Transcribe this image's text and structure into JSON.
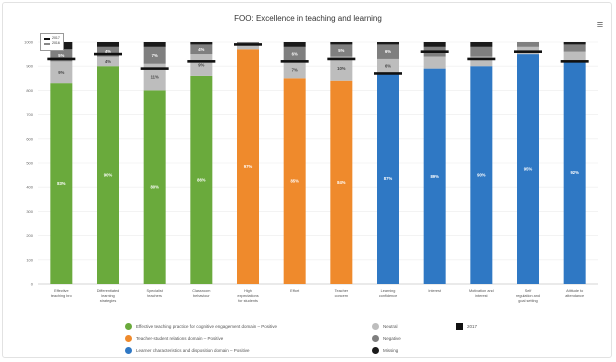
{
  "chart_data": {
    "type": "bar",
    "stacked": true,
    "title": "FOO: Excellence in teaching and learning",
    "ylim": [
      0,
      1000
    ],
    "yticks": [
      "0",
      "100",
      "200",
      "300",
      "400",
      "500",
      "600",
      "700",
      "800",
      "900",
      "1000"
    ],
    "categories": [
      "Effective teaching bro",
      "Differentiated learning strategies",
      "Specialist teachers",
      "Classroom behaviour",
      "High expectations for students",
      "Effort",
      "Teacher concern",
      "Learning confidence",
      "Interest",
      "Motivation and interest",
      "Self regulation and goal setting",
      "Attitude to attendance"
    ],
    "series": [
      {
        "name": "Effective teaching practice for cognitive engagement domain – Positive",
        "color": "#6aaa3c",
        "values": [
          830,
          900,
          800,
          860,
          null,
          null,
          null,
          null,
          null,
          null,
          null,
          null
        ],
        "labels": [
          "83%",
          "90%",
          "80%",
          "86%",
          "",
          "",
          "",
          "",
          "",
          "",
          "",
          ""
        ]
      },
      {
        "name": "Teacher-student relations domain – Positive",
        "color": "#ef8a2c",
        "values": [
          null,
          null,
          null,
          null,
          970,
          850,
          840,
          null,
          null,
          null,
          null,
          null
        ],
        "labels": [
          "",
          "",
          "",
          "",
          "97%",
          "85%",
          "84%",
          "",
          "",
          "",
          "",
          ""
        ]
      },
      {
        "name": "Learner characteristics and disposition domain – Positive",
        "color": "#2f78c4",
        "values": [
          null,
          null,
          null,
          null,
          null,
          null,
          null,
          870,
          890,
          900,
          950,
          920
        ],
        "labels": [
          "",
          "",
          "",
          "",
          "",
          "",
          "",
          "87%",
          "89%",
          "90%",
          "95%",
          "92%"
        ]
      },
      {
        "name": "Neutral",
        "color": "#bdbdbd",
        "values": [
          90,
          40,
          110,
          90,
          20,
          70,
          100,
          60,
          50,
          40,
          30,
          40
        ],
        "labels": [
          "9%",
          "4%",
          "11%",
          "9%",
          "",
          "7%",
          "10%",
          "6%",
          "",
          "",
          "",
          ""
        ]
      },
      {
        "name": "Negative",
        "color": "#7f7f7f",
        "values": [
          50,
          40,
          70,
          40,
          10,
          60,
          50,
          60,
          40,
          40,
          20,
          30
        ],
        "labels": [
          "5%",
          "4%",
          "7%",
          "4%",
          "",
          "6%",
          "5%",
          "6%",
          "",
          "",
          "",
          ""
        ]
      },
      {
        "name": "Missing",
        "color": "#1a1a1a",
        "values": [
          30,
          20,
          20,
          10,
          0,
          20,
          10,
          10,
          20,
          20,
          0,
          10
        ]
      }
    ],
    "markers": {
      "name": "2017",
      "values": [
        930,
        950,
        890,
        920,
        990,
        920,
        930,
        870,
        960,
        930,
        960,
        920
      ]
    },
    "legend_position": "bottom"
  },
  "top_legend": {
    "label": "2017",
    "label2": "2016"
  }
}
